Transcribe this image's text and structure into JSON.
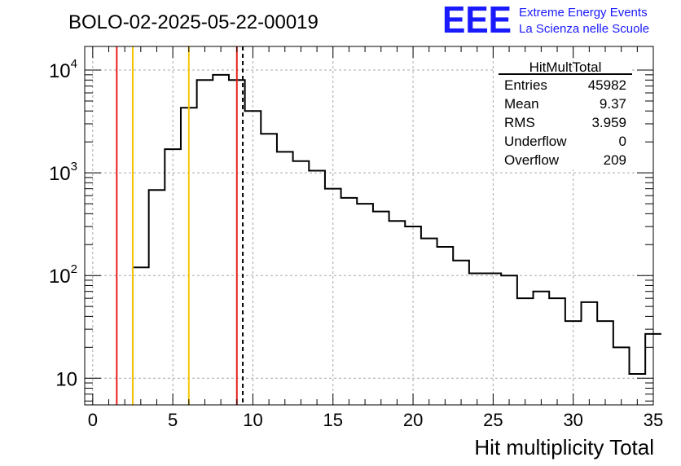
{
  "chart_data": {
    "type": "histogram",
    "title": "BOLO-02-2025-05-22-00019",
    "xlabel": "Hit multiplicity Total",
    "ylabel": "",
    "xlim": [
      -0.5,
      35
    ],
    "ylim": [
      5.5,
      17000
    ],
    "yscale": "log",
    "grid": true,
    "x_ticks": [
      0,
      5,
      10,
      15,
      20,
      25,
      30,
      35
    ],
    "y_ticks": [
      {
        "base": "10",
        "exp": "",
        "value": 10
      },
      {
        "base": "10",
        "exp": "2",
        "value": 100
      },
      {
        "base": "10",
        "exp": "3",
        "value": 1000
      },
      {
        "base": "10",
        "exp": "4",
        "value": 10000
      }
    ],
    "bin_edges_start": 2.5,
    "bin_width": 1,
    "bin_values": [
      120,
      680,
      1700,
      4300,
      8000,
      9000,
      8000,
      4000,
      2400,
      1600,
      1300,
      1050,
      700,
      570,
      500,
      420,
      340,
      300,
      230,
      190,
      140,
      105,
      105,
      100,
      60,
      70,
      60,
      36,
      55,
      36,
      20,
      11,
      27
    ],
    "vertical_lines": [
      {
        "x": 1.5,
        "color": "#e8201c",
        "style": "solid"
      },
      {
        "x": 2.5,
        "color": "#f5c400",
        "style": "solid"
      },
      {
        "x": 6.0,
        "color": "#f5c400",
        "style": "solid"
      },
      {
        "x": 9.0,
        "color": "#e8201c",
        "style": "solid"
      },
      {
        "x": 9.37,
        "color": "#000000",
        "style": "dashed"
      }
    ],
    "stats_box": {
      "title": "HitMultTotal",
      "rows": [
        {
          "label": "Entries",
          "value": "45982"
        },
        {
          "label": "Mean",
          "value": "9.37"
        },
        {
          "label": "RMS",
          "value": "3.959"
        },
        {
          "label": "Underflow",
          "value": "0"
        },
        {
          "label": "Overflow",
          "value": "209"
        }
      ]
    }
  },
  "logo": {
    "text": "EEE",
    "line1": "Extreme Energy Events",
    "line2": "La Scienza nelle Scuole",
    "color": "#1a1aff"
  }
}
